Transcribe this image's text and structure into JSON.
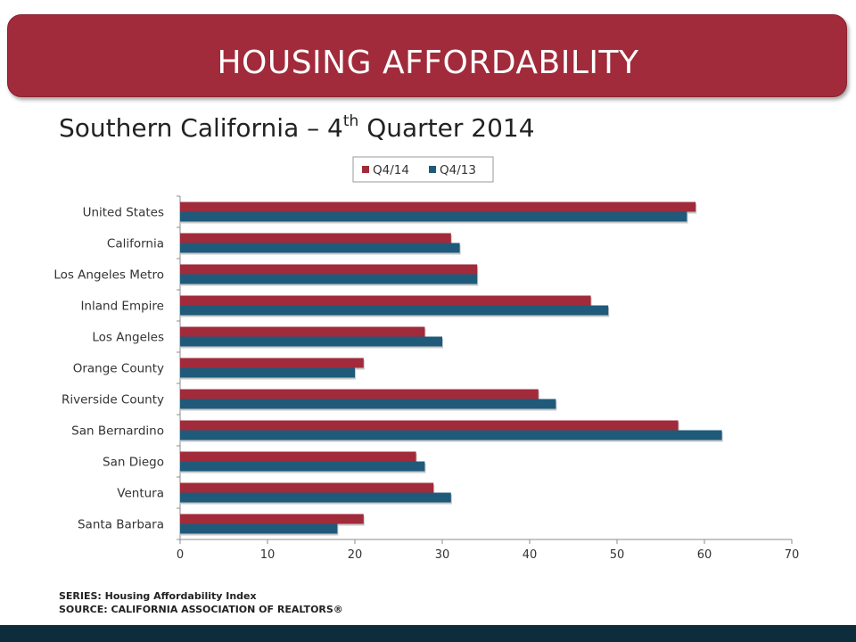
{
  "header": {
    "title": "HOUSING AFFORDABILITY",
    "subtitle_main": "Southern California – 4",
    "subtitle_sup": "th",
    "subtitle_end": " Quarter 2014"
  },
  "chart_data": {
    "type": "bar",
    "orientation": "horizontal",
    "categories": [
      "United States",
      "California",
      "Los Angeles Metro",
      "Inland Empire",
      "Los Angeles",
      "Orange County",
      "Riverside County",
      "San Bernardino",
      "San Diego",
      "Ventura",
      "Santa Barbara"
    ],
    "series": [
      {
        "name": "Q4/14",
        "color": "#a12b3a",
        "values": [
          59,
          31,
          34,
          47,
          28,
          21,
          41,
          57,
          27,
          29,
          21
        ]
      },
      {
        "name": "Q4/13",
        "color": "#1f5a7a",
        "values": [
          58,
          32,
          34,
          49,
          30,
          20,
          43,
          62,
          28,
          31,
          18
        ]
      }
    ],
    "xlim": [
      0,
      70
    ],
    "xticks": [
      0,
      10,
      20,
      30,
      40,
      50,
      60,
      70
    ],
    "grid": false,
    "legend": "top"
  },
  "footer": {
    "series_note": "SERIES: Housing Affordability Index",
    "source_note": "SOURCE: CALIFORNIA ASSOCIATION OF REALTORS®"
  }
}
